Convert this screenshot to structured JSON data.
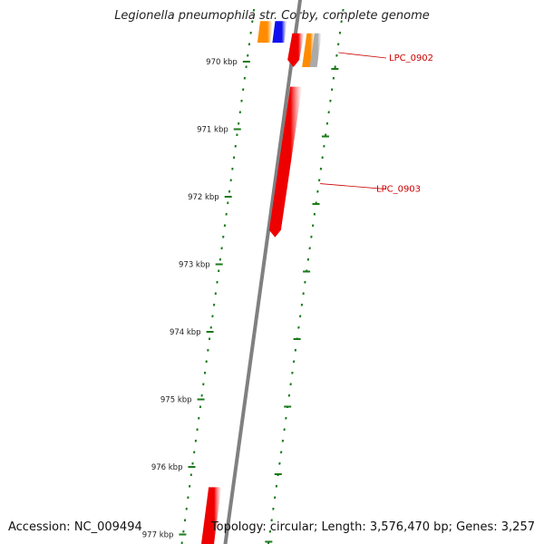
{
  "title": "Legionella pneumophila str. Corby, complete genome",
  "footer": {
    "accession": "Accession: NC_009494",
    "summary": "Topology: circular; Length: 3,576,470 bp; Genes: 3,257"
  },
  "map": {
    "range_kbp": [
      969.45,
      977.1
    ],
    "ticks": [
      {
        "kbp": 970,
        "label": "970 kbp"
      },
      {
        "kbp": 971,
        "label": "971 kbp"
      },
      {
        "kbp": 972,
        "label": "972 kbp"
      },
      {
        "kbp": 973,
        "label": "973 kbp"
      },
      {
        "kbp": 974,
        "label": "974 kbp"
      },
      {
        "kbp": 975,
        "label": "975 kbp"
      },
      {
        "kbp": 976,
        "label": "976 kbp"
      },
      {
        "kbp": 977,
        "label": "977 kbp"
      }
    ],
    "features": [
      {
        "track": "reverse",
        "start_kbp": 969.4,
        "end_kbp": 969.72,
        "color": "#ff8c00"
      },
      {
        "track": "reverse",
        "start_kbp": 969.4,
        "end_kbp": 969.72,
        "color": "#1010ee"
      },
      {
        "track": "forward",
        "start_kbp": 969.58,
        "end_kbp": 970.08,
        "color": "#ee0000",
        "arrow": "down"
      },
      {
        "track": "forward",
        "start_kbp": 969.58,
        "end_kbp": 970.08,
        "color": "#ff8c00"
      },
      {
        "track": "forward",
        "start_kbp": 969.58,
        "end_kbp": 970.08,
        "color": "#aaaaaa"
      },
      {
        "track": "forward",
        "start_kbp": 970.37,
        "end_kbp": 972.6,
        "color": "#ee0000",
        "arrow": "down"
      },
      {
        "track": "reverse",
        "start_kbp": 976.3,
        "end_kbp": 977.2,
        "color": "#ee0000"
      }
    ],
    "labels": [
      {
        "text": "LPC_0902",
        "kbp": 969.92
      },
      {
        "text": "LPC_0903",
        "kbp": 971.86
      }
    ],
    "colors": {
      "backbone": "#808080",
      "ticks": "#1a7a1a",
      "label": "#cc0000"
    }
  }
}
